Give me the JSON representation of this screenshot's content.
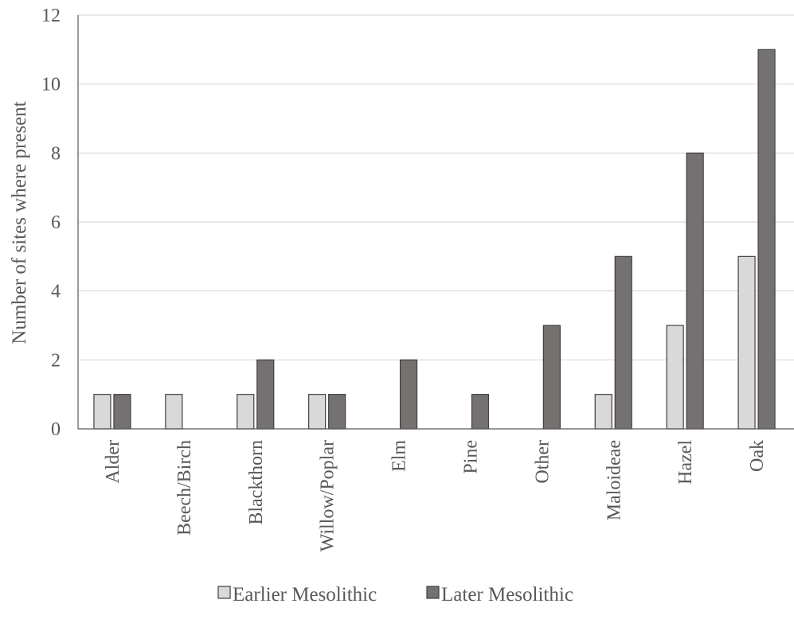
{
  "chart_data": {
    "type": "bar",
    "title": "",
    "xlabel": "",
    "ylabel": "Number of sites where present",
    "ylim": [
      0,
      12
    ],
    "yticks": [
      0,
      2,
      4,
      6,
      8,
      10,
      12
    ],
    "grid": true,
    "legend_position": "bottom",
    "categories": [
      "Alder",
      "Beech/Birch",
      "Blackthorn",
      "Willow/Poplar",
      "Elm",
      "Pine",
      "Other",
      "Maloideae",
      "Hazel",
      "Oak"
    ],
    "series": [
      {
        "name": "Earlier Mesolithic",
        "color": "#d9d9d9",
        "values": [
          1,
          1,
          1,
          1,
          0,
          0,
          0,
          1,
          3,
          5
        ]
      },
      {
        "name": "Later Mesolithic",
        "color": "#767171",
        "values": [
          1,
          0,
          2,
          1,
          2,
          1,
          3,
          5,
          8,
          11
        ]
      }
    ]
  }
}
